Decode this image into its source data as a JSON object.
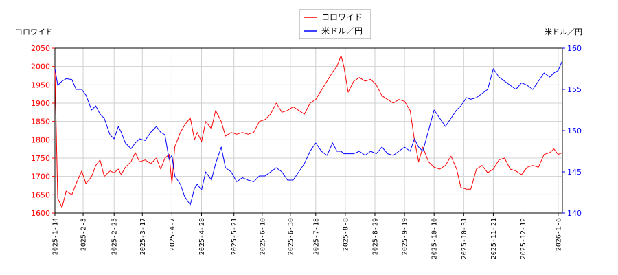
{
  "chart_data": {
    "type": "line",
    "left_axis_label": "コロワイド",
    "right_axis_label": "米ドル／円",
    "colors": {
      "primary": "#ff0000",
      "secondary": "#0000ff",
      "grid": "#d0d0d0"
    },
    "grid": true,
    "legend_position": "top-center",
    "x_range": [
      "2025-01-14",
      "2026-01-09"
    ],
    "x_ticks": [
      "2025-1-14",
      "2025-2-3",
      "2025-2-25",
      "2025-3-17",
      "2025-4-7",
      "2025-4-28",
      "2025-5-21",
      "2025-6-10",
      "2025-6-30",
      "2025-7-18",
      "2025-8-8",
      "2025-8-29",
      "2025-9-19",
      "2025-10-10",
      "2025-10-31",
      "2025-11-21",
      "2025-12-12",
      "2026-1-6"
    ],
    "x_tick_dates": [
      "2025-01-14",
      "2025-02-03",
      "2025-02-25",
      "2025-03-17",
      "2025-04-07",
      "2025-04-28",
      "2025-05-21",
      "2025-06-10",
      "2025-06-30",
      "2025-07-18",
      "2025-08-08",
      "2025-08-29",
      "2025-09-19",
      "2025-10-10",
      "2025-10-31",
      "2025-11-21",
      "2025-12-12",
      "2026-01-06"
    ],
    "y_left": {
      "min": 1600,
      "max": 2050,
      "ticks": [
        1600,
        1650,
        1700,
        1750,
        1800,
        1850,
        1900,
        1950,
        2000,
        2050
      ]
    },
    "y_right": {
      "min": 140,
      "max": 160,
      "ticks": [
        140,
        145,
        150,
        155,
        160
      ]
    },
    "series": [
      {
        "name": "コロワイド",
        "axis": "left",
        "color": "#ff0000",
        "points": [
          [
            "2025-01-14",
            1990
          ],
          [
            "2025-01-16",
            1640
          ],
          [
            "2025-01-19",
            1615
          ],
          [
            "2025-01-22",
            1660
          ],
          [
            "2025-01-26",
            1650
          ],
          [
            "2025-01-29",
            1680
          ],
          [
            "2025-02-02",
            1715
          ],
          [
            "2025-02-05",
            1680
          ],
          [
            "2025-02-09",
            1700
          ],
          [
            "2025-02-12",
            1730
          ],
          [
            "2025-02-15",
            1745
          ],
          [
            "2025-02-18",
            1700
          ],
          [
            "2025-02-22",
            1715
          ],
          [
            "2025-02-25",
            1710
          ],
          [
            "2025-02-28",
            1720
          ],
          [
            "2025-03-02",
            1705
          ],
          [
            "2025-03-05",
            1725
          ],
          [
            "2025-03-09",
            1740
          ],
          [
            "2025-03-12",
            1765
          ],
          [
            "2025-03-15",
            1740
          ],
          [
            "2025-03-19",
            1745
          ],
          [
            "2025-03-23",
            1735
          ],
          [
            "2025-03-27",
            1750
          ],
          [
            "2025-03-30",
            1720
          ],
          [
            "2025-04-02",
            1750
          ],
          [
            "2025-04-05",
            1760
          ],
          [
            "2025-04-07",
            1680
          ],
          [
            "2025-04-09",
            1780
          ],
          [
            "2025-04-13",
            1820
          ],
          [
            "2025-04-16",
            1840
          ],
          [
            "2025-04-20",
            1860
          ],
          [
            "2025-04-23",
            1800
          ],
          [
            "2025-04-25",
            1820
          ],
          [
            "2025-04-28",
            1795
          ],
          [
            "2025-05-01",
            1850
          ],
          [
            "2025-05-05",
            1830
          ],
          [
            "2025-05-08",
            1880
          ],
          [
            "2025-05-12",
            1850
          ],
          [
            "2025-05-15",
            1810
          ],
          [
            "2025-05-19",
            1820
          ],
          [
            "2025-05-23",
            1815
          ],
          [
            "2025-05-27",
            1820
          ],
          [
            "2025-05-31",
            1815
          ],
          [
            "2025-06-04",
            1820
          ],
          [
            "2025-06-08",
            1850
          ],
          [
            "2025-06-12",
            1855
          ],
          [
            "2025-06-16",
            1870
          ],
          [
            "2025-06-20",
            1900
          ],
          [
            "2025-06-24",
            1875
          ],
          [
            "2025-06-28",
            1880
          ],
          [
            "2025-07-02",
            1890
          ],
          [
            "2025-07-06",
            1880
          ],
          [
            "2025-07-10",
            1870
          ],
          [
            "2025-07-14",
            1900
          ],
          [
            "2025-07-18",
            1910
          ],
          [
            "2025-07-22",
            1935
          ],
          [
            "2025-07-26",
            1960
          ],
          [
            "2025-07-30",
            1985
          ],
          [
            "2025-08-02",
            2000
          ],
          [
            "2025-08-05",
            2030
          ],
          [
            "2025-08-07",
            2000
          ],
          [
            "2025-08-10",
            1930
          ],
          [
            "2025-08-14",
            1960
          ],
          [
            "2025-08-18",
            1970
          ],
          [
            "2025-08-22",
            1960
          ],
          [
            "2025-08-26",
            1965
          ],
          [
            "2025-08-30",
            1950
          ],
          [
            "2025-09-03",
            1920
          ],
          [
            "2025-09-07",
            1910
          ],
          [
            "2025-09-11",
            1900
          ],
          [
            "2025-09-15",
            1910
          ],
          [
            "2025-09-19",
            1905
          ],
          [
            "2025-09-23",
            1880
          ],
          [
            "2025-09-26",
            1800
          ],
          [
            "2025-09-29",
            1740
          ],
          [
            "2025-10-02",
            1780
          ],
          [
            "2025-10-06",
            1740
          ],
          [
            "2025-10-10",
            1725
          ],
          [
            "2025-10-14",
            1720
          ],
          [
            "2025-10-18",
            1730
          ],
          [
            "2025-10-22",
            1755
          ],
          [
            "2025-10-26",
            1720
          ],
          [
            "2025-10-29",
            1670
          ],
          [
            "2025-11-02",
            1665
          ],
          [
            "2025-11-05",
            1665
          ],
          [
            "2025-11-09",
            1720
          ],
          [
            "2025-11-13",
            1730
          ],
          [
            "2025-11-17",
            1710
          ],
          [
            "2025-11-21",
            1720
          ],
          [
            "2025-11-25",
            1745
          ],
          [
            "2025-11-29",
            1750
          ],
          [
            "2025-12-03",
            1720
          ],
          [
            "2025-12-07",
            1715
          ],
          [
            "2025-12-11",
            1705
          ],
          [
            "2025-12-15",
            1725
          ],
          [
            "2025-12-19",
            1730
          ],
          [
            "2025-12-23",
            1725
          ],
          [
            "2025-12-27",
            1760
          ],
          [
            "2025-12-31",
            1765
          ],
          [
            "2026-01-03",
            1775
          ],
          [
            "2026-01-06",
            1760
          ],
          [
            "2026-01-09",
            1765
          ]
        ]
      },
      {
        "name": "米ドル／円",
        "axis": "right",
        "color": "#0000ff",
        "points": [
          [
            "2025-01-14",
            157.5
          ],
          [
            "2025-01-16",
            155.5
          ],
          [
            "2025-01-19",
            156.0
          ],
          [
            "2025-01-22",
            156.3
          ],
          [
            "2025-01-26",
            156.2
          ],
          [
            "2025-01-29",
            155.0
          ],
          [
            "2025-02-02",
            155.0
          ],
          [
            "2025-02-05",
            154.3
          ],
          [
            "2025-02-09",
            152.5
          ],
          [
            "2025-02-12",
            153.0
          ],
          [
            "2025-02-15",
            152.0
          ],
          [
            "2025-02-18",
            151.5
          ],
          [
            "2025-02-22",
            149.5
          ],
          [
            "2025-02-25",
            149.0
          ],
          [
            "2025-02-28",
            150.5
          ],
          [
            "2025-03-02",
            149.8
          ],
          [
            "2025-03-05",
            148.5
          ],
          [
            "2025-03-09",
            147.8
          ],
          [
            "2025-03-12",
            148.5
          ],
          [
            "2025-03-15",
            149.0
          ],
          [
            "2025-03-19",
            148.8
          ],
          [
            "2025-03-23",
            149.8
          ],
          [
            "2025-03-27",
            150.5
          ],
          [
            "2025-03-30",
            149.8
          ],
          [
            "2025-04-02",
            149.5
          ],
          [
            "2025-04-05",
            146.5
          ],
          [
            "2025-04-07",
            147.0
          ],
          [
            "2025-04-09",
            144.5
          ],
          [
            "2025-04-13",
            143.5
          ],
          [
            "2025-04-16",
            142.0
          ],
          [
            "2025-04-20",
            141.0
          ],
          [
            "2025-04-23",
            143.0
          ],
          [
            "2025-04-25",
            143.5
          ],
          [
            "2025-04-28",
            142.8
          ],
          [
            "2025-05-01",
            145.0
          ],
          [
            "2025-05-05",
            144.0
          ],
          [
            "2025-05-08",
            146.0
          ],
          [
            "2025-05-12",
            148.0
          ],
          [
            "2025-05-15",
            145.5
          ],
          [
            "2025-05-19",
            145.0
          ],
          [
            "2025-05-23",
            143.8
          ],
          [
            "2025-05-27",
            144.3
          ],
          [
            "2025-05-31",
            144.0
          ],
          [
            "2025-06-04",
            143.8
          ],
          [
            "2025-06-08",
            144.5
          ],
          [
            "2025-06-12",
            144.5
          ],
          [
            "2025-06-16",
            145.0
          ],
          [
            "2025-06-20",
            145.5
          ],
          [
            "2025-06-24",
            145.0
          ],
          [
            "2025-06-28",
            144.0
          ],
          [
            "2025-07-02",
            144.0
          ],
          [
            "2025-07-06",
            145.0
          ],
          [
            "2025-07-10",
            146.0
          ],
          [
            "2025-07-14",
            147.5
          ],
          [
            "2025-07-18",
            148.5
          ],
          [
            "2025-07-22",
            147.5
          ],
          [
            "2025-07-26",
            147.0
          ],
          [
            "2025-07-30",
            148.5
          ],
          [
            "2025-08-02",
            147.5
          ],
          [
            "2025-08-05",
            147.5
          ],
          [
            "2025-08-07",
            147.2
          ],
          [
            "2025-08-10",
            147.2
          ],
          [
            "2025-08-14",
            147.2
          ],
          [
            "2025-08-18",
            147.5
          ],
          [
            "2025-08-22",
            147.0
          ],
          [
            "2025-08-26",
            147.5
          ],
          [
            "2025-08-30",
            147.2
          ],
          [
            "2025-09-03",
            148.0
          ],
          [
            "2025-09-07",
            147.2
          ],
          [
            "2025-09-11",
            147.0
          ],
          [
            "2025-09-15",
            147.5
          ],
          [
            "2025-09-19",
            148.0
          ],
          [
            "2025-09-23",
            147.5
          ],
          [
            "2025-09-26",
            149.0
          ],
          [
            "2025-09-29",
            148.0
          ],
          [
            "2025-10-02",
            147.5
          ],
          [
            "2025-10-06",
            150.0
          ],
          [
            "2025-10-10",
            152.5
          ],
          [
            "2025-10-14",
            151.5
          ],
          [
            "2025-10-18",
            150.5
          ],
          [
            "2025-10-22",
            151.5
          ],
          [
            "2025-10-26",
            152.5
          ],
          [
            "2025-10-29",
            153.0
          ],
          [
            "2025-11-02",
            154.0
          ],
          [
            "2025-11-05",
            153.8
          ],
          [
            "2025-11-09",
            154.0
          ],
          [
            "2025-11-13",
            154.5
          ],
          [
            "2025-11-17",
            155.0
          ],
          [
            "2025-11-21",
            157.5
          ],
          [
            "2025-11-25",
            156.5
          ],
          [
            "2025-11-29",
            156.0
          ],
          [
            "2025-12-03",
            155.5
          ],
          [
            "2025-12-07",
            155.0
          ],
          [
            "2025-12-11",
            155.8
          ],
          [
            "2025-12-15",
            155.5
          ],
          [
            "2025-12-19",
            155.0
          ],
          [
            "2025-12-23",
            156.0
          ],
          [
            "2025-12-27",
            157.0
          ],
          [
            "2025-12-31",
            156.5
          ],
          [
            "2026-01-03",
            157.0
          ],
          [
            "2026-01-06",
            157.3
          ],
          [
            "2026-01-09",
            158.5
          ]
        ]
      }
    ]
  }
}
